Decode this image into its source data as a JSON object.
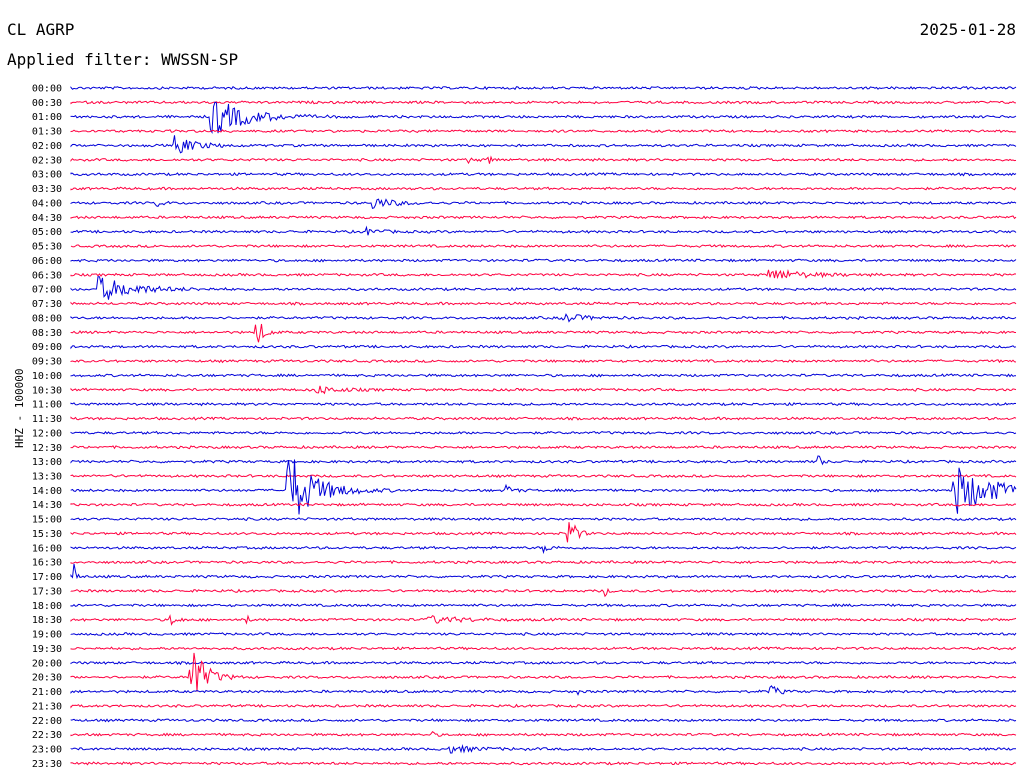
{
  "header": {
    "station": "CL AGRP",
    "date": "2025-01-28",
    "filter": "Applied filter: WWSSN-SP"
  },
  "chart_data": {
    "type": "line",
    "ylabel": "HHZ - 100000",
    "colors": {
      "a": "#0000d8",
      "b": "#ff0040"
    },
    "tick_labels": [
      "00:00",
      "00:30",
      "01:00",
      "01:30",
      "02:00",
      "02:30",
      "03:00",
      "03:30",
      "04:00",
      "04:30",
      "05:00",
      "05:30",
      "06:00",
      "06:30",
      "07:00",
      "07:30",
      "08:00",
      "08:30",
      "09:00",
      "09:30",
      "10:00",
      "10:30",
      "11:00",
      "11:30",
      "12:00",
      "12:30",
      "13:00",
      "13:30",
      "14:00",
      "14:30",
      "15:00",
      "15:30",
      "16:00",
      "16:30",
      "17:00",
      "17:30",
      "18:00",
      "18:30",
      "19:00",
      "19:30",
      "20:00",
      "20:30",
      "21:00",
      "21:30",
      "22:00",
      "22:30",
      "23:00",
      "23:30"
    ],
    "events": [
      {
        "trace": 2,
        "pos": 0.15,
        "amp": 1.4,
        "dur": 0.05
      },
      {
        "trace": 4,
        "pos": 0.11,
        "amp": 0.7,
        "dur": 0.03
      },
      {
        "trace": 5,
        "pos": 0.42,
        "amp": 0.35,
        "dur": 0.006
      },
      {
        "trace": 5,
        "pos": 0.44,
        "amp": 0.6,
        "dur": 0.006
      },
      {
        "trace": 8,
        "pos": 0.09,
        "amp": 0.3,
        "dur": 0.01
      },
      {
        "trace": 8,
        "pos": 0.32,
        "amp": 0.4,
        "dur": 0.03
      },
      {
        "trace": 10,
        "pos": 0.31,
        "amp": 0.3,
        "dur": 0.02
      },
      {
        "trace": 13,
        "pos": 0.74,
        "amp": 0.4,
        "dur": 0.05
      },
      {
        "trace": 14,
        "pos": 0.03,
        "amp": 0.9,
        "dur": 0.05
      },
      {
        "trace": 16,
        "pos": 0.52,
        "amp": 0.35,
        "dur": 0.03
      },
      {
        "trace": 17,
        "pos": 0.195,
        "amp": 1.5,
        "dur": 0.01
      },
      {
        "trace": 21,
        "pos": 0.26,
        "amp": 0.3,
        "dur": 0.03
      },
      {
        "trace": 26,
        "pos": 0.79,
        "amp": 0.7,
        "dur": 0.005
      },
      {
        "trace": 28,
        "pos": 0.23,
        "amp": 2.8,
        "dur": 0.04
      },
      {
        "trace": 28,
        "pos": 0.46,
        "amp": 0.4,
        "dur": 0.01
      },
      {
        "trace": 28,
        "pos": 0.935,
        "amp": 1.8,
        "dur": 0.06
      },
      {
        "trace": 31,
        "pos": 0.525,
        "amp": 1.8,
        "dur": 0.01
      },
      {
        "trace": 32,
        "pos": 0.5,
        "amp": 0.3,
        "dur": 0.01
      },
      {
        "trace": 34,
        "pos": 0.003,
        "amp": 1.0,
        "dur": 0.004
      },
      {
        "trace": 35,
        "pos": 0.565,
        "amp": 0.5,
        "dur": 0.003
      },
      {
        "trace": 37,
        "pos": 0.105,
        "amp": 0.4,
        "dur": 0.01
      },
      {
        "trace": 37,
        "pos": 0.185,
        "amp": 0.6,
        "dur": 0.003
      },
      {
        "trace": 37,
        "pos": 0.38,
        "amp": 0.25,
        "dur": 0.05
      },
      {
        "trace": 41,
        "pos": 0.125,
        "amp": 3.0,
        "dur": 0.02
      },
      {
        "trace": 42,
        "pos": 0.535,
        "amp": 0.35,
        "dur": 0.003
      },
      {
        "trace": 42,
        "pos": 0.74,
        "amp": 0.6,
        "dur": 0.01
      },
      {
        "trace": 45,
        "pos": 0.38,
        "amp": 0.3,
        "dur": 0.006
      },
      {
        "trace": 46,
        "pos": 0.4,
        "amp": 0.25,
        "dur": 0.04
      }
    ]
  }
}
